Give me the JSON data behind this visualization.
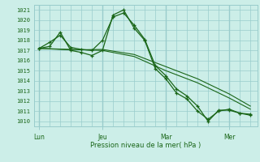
{
  "bg_color": "#cceee8",
  "grid_color": "#99cccc",
  "line_color": "#1a6618",
  "ylabel": "Pression niveau de la mer( hPa )",
  "ylim": [
    1009.5,
    1021.5
  ],
  "yticks": [
    1010,
    1011,
    1012,
    1013,
    1014,
    1015,
    1016,
    1017,
    1018,
    1019,
    1020,
    1021
  ],
  "xtick_labels": [
    "Lun",
    "Jeu",
    "Mar",
    "Mer"
  ],
  "xtick_positions": [
    0,
    36,
    72,
    108
  ],
  "xlim": [
    -3,
    124
  ],
  "line1_x": [
    0,
    6,
    12,
    18,
    24,
    30,
    36,
    42,
    48,
    54,
    60,
    66,
    72,
    78,
    84,
    90,
    96,
    102,
    108,
    114,
    120
  ],
  "line1_y": [
    1017.2,
    1017.8,
    1018.5,
    1017.3,
    1017.1,
    1017.0,
    1018.0,
    1020.3,
    1020.7,
    1019.5,
    1018.1,
    1015.5,
    1014.5,
    1013.2,
    1012.5,
    1011.5,
    1010.0,
    1011.1,
    1011.1,
    1010.8,
    1010.7
  ],
  "line2_x": [
    0,
    6,
    12,
    18,
    24,
    30,
    36,
    42,
    48,
    54,
    60,
    66,
    72,
    78,
    84,
    90,
    96,
    102,
    108,
    114,
    120
  ],
  "line2_y": [
    1017.2,
    1017.4,
    1018.8,
    1017.0,
    1016.8,
    1016.5,
    1017.0,
    1020.5,
    1021.0,
    1019.2,
    1018.0,
    1015.2,
    1014.2,
    1012.8,
    1012.2,
    1011.0,
    1010.2,
    1011.0,
    1011.2,
    1010.8,
    1010.6
  ],
  "line3_x": [
    0,
    18,
    36,
    54,
    72,
    90,
    108,
    120
  ],
  "line3_y": [
    1017.2,
    1017.1,
    1017.0,
    1016.4,
    1015.0,
    1013.8,
    1012.3,
    1011.2
  ],
  "line4_x": [
    0,
    18,
    36,
    54,
    72,
    90,
    108,
    120
  ],
  "line4_y": [
    1017.2,
    1017.05,
    1017.1,
    1016.6,
    1015.4,
    1014.2,
    1012.7,
    1011.5
  ]
}
